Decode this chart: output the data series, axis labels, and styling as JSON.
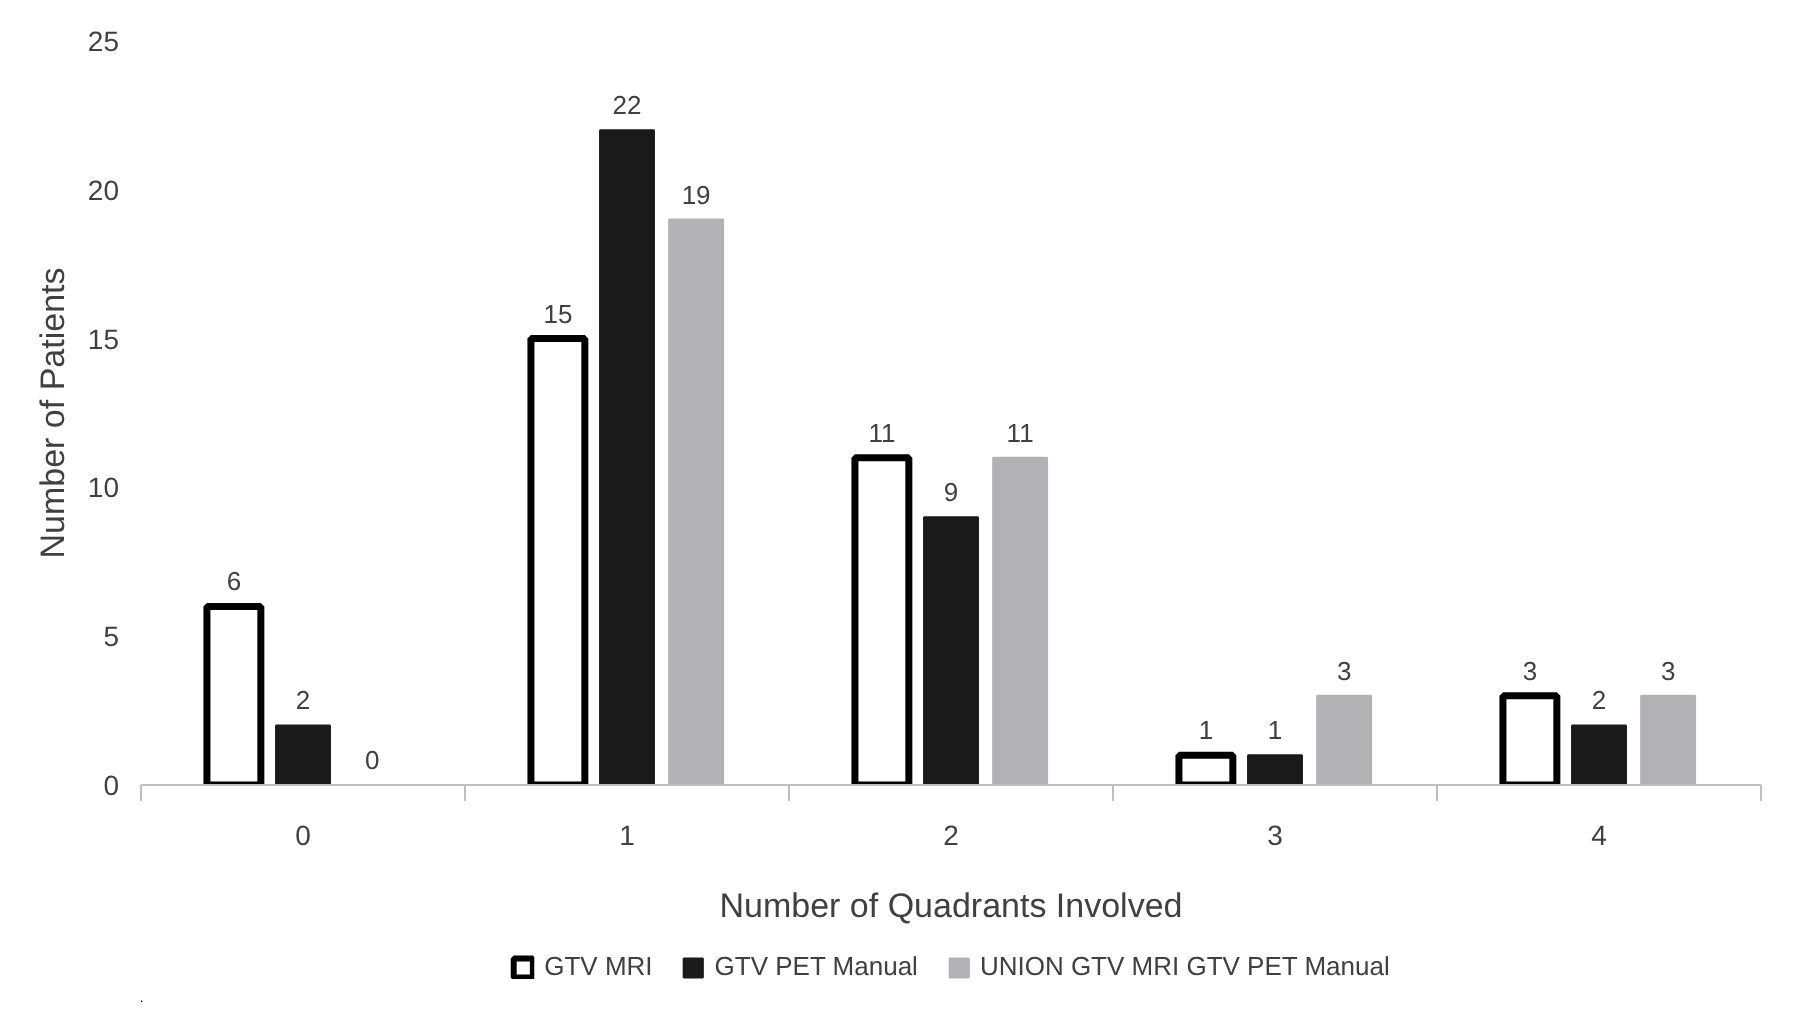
{
  "chart_data": {
    "type": "bar",
    "xlabel": "Number of Quadrants Involved",
    "ylabel": "Number of Patients",
    "categories": [
      "0",
      "1",
      "2",
      "3",
      "4"
    ],
    "series": [
      {
        "name": "GTV MRI",
        "color": "#ffffff",
        "values": [
          6,
          15,
          11,
          1,
          3
        ]
      },
      {
        "name": "GTV PET Manual",
        "color": "#1a1a1a",
        "values": [
          2,
          22,
          9,
          1,
          2
        ]
      },
      {
        "name": "UNION GTV MRI GTV PET Manual",
        "color": "#b2b2b4",
        "values": [
          0,
          19,
          11,
          3,
          3
        ]
      }
    ],
    "ylim": [
      0,
      25
    ],
    "yticks": [
      0,
      5,
      10,
      15,
      20,
      25
    ],
    "grid": false,
    "legend": "bottom",
    "data_labels": true
  }
}
